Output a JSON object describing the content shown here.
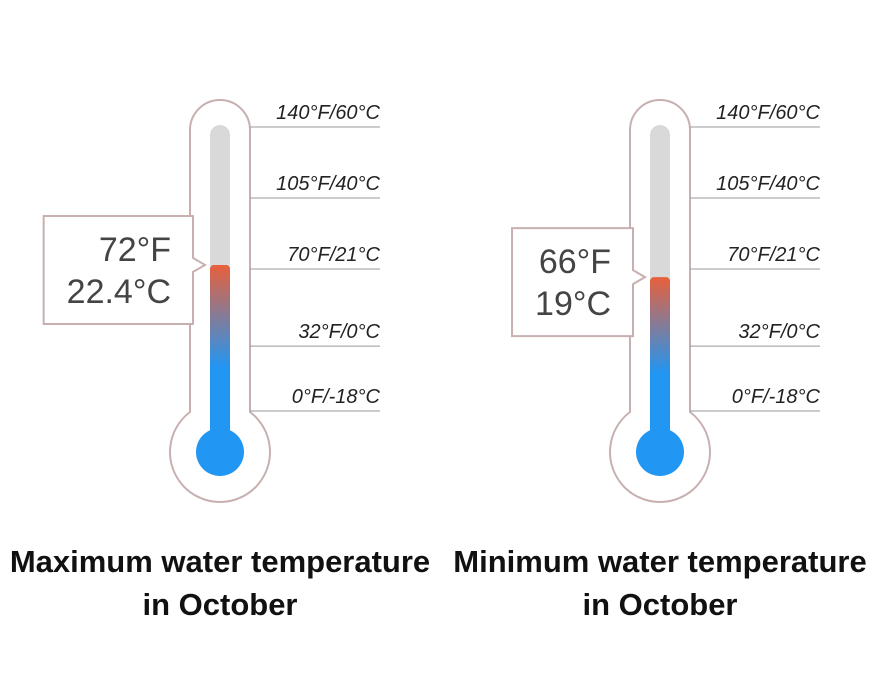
{
  "chart_data": [
    {
      "type": "thermometer",
      "title": "Maximum water temperature in October",
      "values": [
        72
      ],
      "value_labels": [
        "72°F"
      ],
      "celsius_labels": [
        "22.4°C"
      ],
      "ylim": [
        0,
        140
      ],
      "yticks": [
        {
          "value": 140,
          "label": "140°F/60°C"
        },
        {
          "value": 105,
          "label": "105°F/40°C"
        },
        {
          "value": 70,
          "label": "70°F/21°C"
        },
        {
          "value": 32,
          "label": "32°F/0°C"
        },
        {
          "value": 0,
          "label": "0°F/-18°C"
        }
      ],
      "colors": [
        "#e8603c",
        "#2196f3"
      ]
    },
    {
      "type": "thermometer",
      "title": "Minimum water temperature in October",
      "values": [
        66
      ],
      "value_labels": [
        "66°F"
      ],
      "celsius_labels": [
        "19°C"
      ],
      "ylim": [
        0,
        140
      ],
      "yticks": [
        {
          "value": 140,
          "label": "140°F/60°C"
        },
        {
          "value": 105,
          "label": "105°F/40°C"
        },
        {
          "value": 70,
          "label": "70°F/21°C"
        },
        {
          "value": 32,
          "label": "32°F/0°C"
        },
        {
          "value": 0,
          "label": "0°F/-18°C"
        }
      ],
      "colors": [
        "#e8603c",
        "#2196f3"
      ]
    }
  ]
}
